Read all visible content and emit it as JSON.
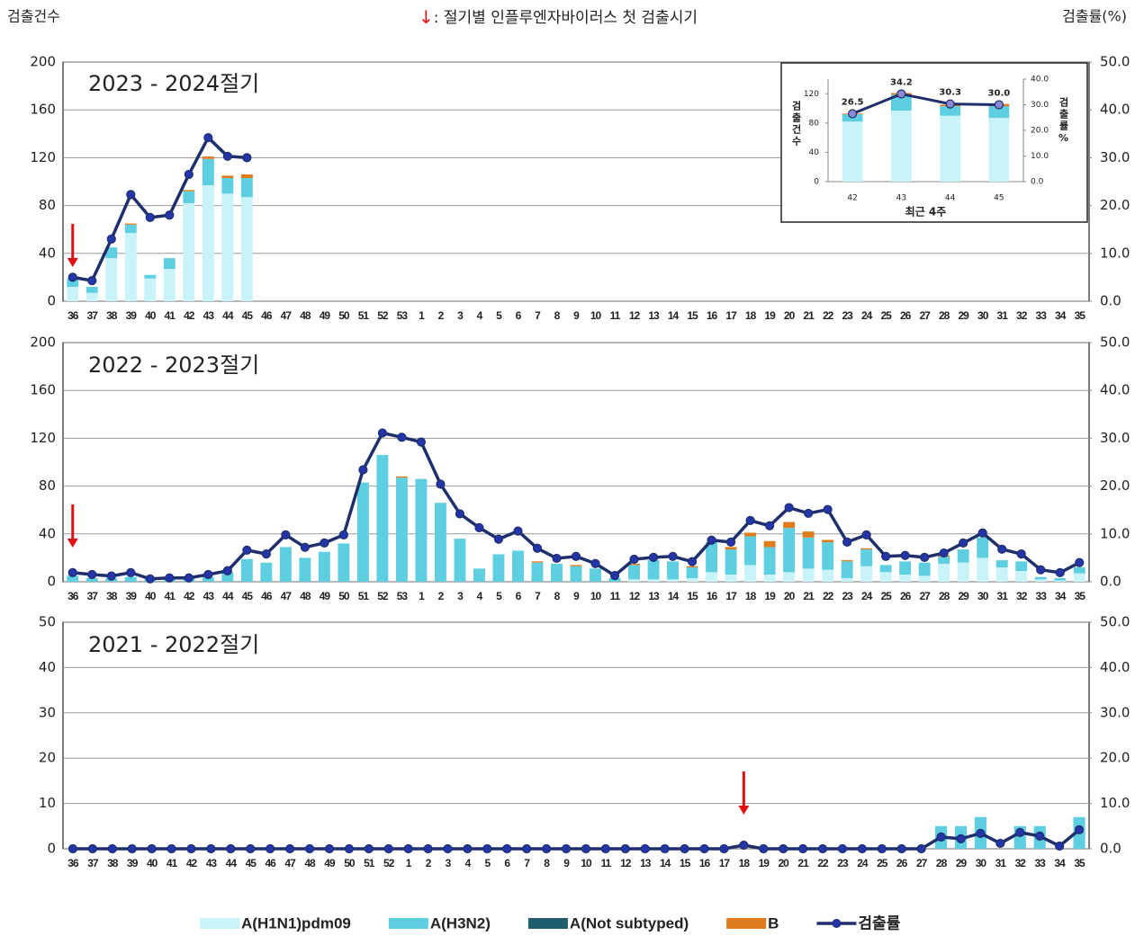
{
  "header": {
    "left_label": "검출건수",
    "note_mark": "↓",
    "note": ": 절기별 인플루엔자바이러스 첫 검출시기",
    "right_label": "검출률(%)"
  },
  "chart_data": [
    {
      "type": "stacked-bar-line",
      "title": "2023 - 2024절기",
      "legend": "bottom",
      "grid": true,
      "first_detection": "36",
      "categories": [
        "36",
        "37",
        "38",
        "39",
        "40",
        "41",
        "42",
        "43",
        "44",
        "45",
        "46",
        "47",
        "48",
        "49",
        "50",
        "51",
        "52",
        "53",
        "1",
        "2",
        "3",
        "4",
        "5",
        "6",
        "7",
        "8",
        "9",
        "10",
        "11",
        "12",
        "13",
        "14",
        "15",
        "16",
        "17",
        "18",
        "19",
        "20",
        "21",
        "22",
        "23",
        "24",
        "25",
        "26",
        "27",
        "28",
        "29",
        "30",
        "31",
        "32",
        "33",
        "34",
        "35"
      ],
      "ylim": [
        0,
        200
      ],
      "yticks": [
        0,
        40,
        80,
        120,
        160,
        200
      ],
      "y2lim": [
        0,
        50
      ],
      "y2ticks": [
        {
          "value": 0,
          "label": "0.0"
        },
        {
          "value": 10,
          "label": "10.0"
        },
        {
          "value": 20,
          "label": "20.0"
        },
        {
          "value": 30,
          "label": "30.0"
        },
        {
          "value": 40,
          "label": "40.0"
        },
        {
          "value": 50,
          "label": "50.0"
        }
      ],
      "series": [
        {
          "name": "A(H1N1)pdm09",
          "color": "#c8f3f9",
          "values": [
            12,
            7,
            36,
            57,
            19,
            27,
            82,
            97,
            90,
            87,
            null,
            null,
            null,
            null,
            null,
            null,
            null,
            null,
            null,
            null,
            null,
            null,
            null,
            null,
            null,
            null,
            null,
            null,
            null,
            null,
            null,
            null,
            null,
            null,
            null,
            null,
            null,
            null,
            null,
            null,
            null,
            null,
            null,
            null,
            null,
            null,
            null,
            null,
            null,
            null,
            null,
            null,
            null
          ]
        },
        {
          "name": "A(H3N2)",
          "color": "#5dcfe0",
          "values": [
            7,
            5,
            9,
            7,
            3,
            9,
            10,
            22,
            13,
            16,
            null,
            null,
            null,
            null,
            null,
            null,
            null,
            null,
            null,
            null,
            null,
            null,
            null,
            null,
            null,
            null,
            null,
            null,
            null,
            null,
            null,
            null,
            null,
            null,
            null,
            null,
            null,
            null,
            null,
            null,
            null,
            null,
            null,
            null,
            null,
            null,
            null,
            null,
            null,
            null,
            null,
            null,
            null
          ]
        },
        {
          "name": "A(Not subtyped)",
          "color": "#1f5d6c",
          "values": [
            0,
            0,
            0,
            0,
            0,
            0,
            0,
            0,
            0,
            0,
            null,
            null,
            null,
            null,
            null,
            null,
            null,
            null,
            null,
            null,
            null,
            null,
            null,
            null,
            null,
            null,
            null,
            null,
            null,
            null,
            null,
            null,
            null,
            null,
            null,
            null,
            null,
            null,
            null,
            null,
            null,
            null,
            null,
            null,
            null,
            null,
            null,
            null,
            null,
            null,
            null,
            null,
            null
          ]
        },
        {
          "name": "B",
          "color": "#e07b1c",
          "values": [
            0,
            0,
            0,
            1,
            0,
            0,
            1,
            2,
            2,
            3,
            null,
            null,
            null,
            null,
            null,
            null,
            null,
            null,
            null,
            null,
            null,
            null,
            null,
            null,
            null,
            null,
            null,
            null,
            null,
            null,
            null,
            null,
            null,
            null,
            null,
            null,
            null,
            null,
            null,
            null,
            null,
            null,
            null,
            null,
            null,
            null,
            null,
            null,
            null,
            null,
            null,
            null,
            null
          ]
        },
        {
          "name": "검출률",
          "color": "#1f2f6b",
          "marker_color": "#2335a8",
          "axis": "y2",
          "values": [
            5,
            4.3,
            13,
            22.3,
            17.5,
            18,
            26.5,
            34.2,
            30.3,
            30,
            null,
            null,
            null,
            null,
            null,
            null,
            null,
            null,
            null,
            null,
            null,
            null,
            null,
            null,
            null,
            null,
            null,
            null,
            null,
            null,
            null,
            null,
            null,
            null,
            null,
            null,
            null,
            null,
            null,
            null,
            null,
            null,
            null,
            null,
            null,
            null,
            null,
            null,
            null,
            null,
            null,
            null,
            null
          ]
        }
      ]
    },
    {
      "type": "stacked-bar-line",
      "title": "2022 - 2023절기",
      "grid": true,
      "first_detection": "36",
      "categories": [
        "36",
        "37",
        "38",
        "39",
        "40",
        "41",
        "42",
        "43",
        "44",
        "45",
        "46",
        "47",
        "48",
        "49",
        "50",
        "51",
        "52",
        "53",
        "1",
        "2",
        "3",
        "4",
        "5",
        "6",
        "7",
        "8",
        "9",
        "10",
        "11",
        "12",
        "13",
        "14",
        "15",
        "16",
        "17",
        "18",
        "19",
        "20",
        "21",
        "22",
        "23",
        "24",
        "25",
        "26",
        "27",
        "28",
        "29",
        "30",
        "31",
        "32",
        "33",
        "34",
        "35"
      ],
      "ylim": [
        0,
        200
      ],
      "yticks": [
        0,
        40,
        80,
        120,
        160,
        200
      ],
      "y2lim": [
        0,
        50
      ],
      "y2ticks": [
        {
          "value": 0,
          "label": "0.0"
        },
        {
          "value": 10,
          "label": "10.0"
        },
        {
          "value": 20,
          "label": "20.0"
        },
        {
          "value": 30,
          "label": "30.0"
        },
        {
          "value": 40,
          "label": "40.0"
        },
        {
          "value": 50,
          "label": "50.0"
        }
      ],
      "series": [
        {
          "name": "A(H1N1)pdm09",
          "color": "#c8f3f9",
          "values": [
            0,
            0,
            0,
            0,
            0,
            0,
            0,
            0,
            0,
            0,
            0,
            0,
            0,
            0,
            0,
            0,
            0,
            0,
            0,
            0,
            0,
            0,
            0,
            0,
            0,
            0,
            0,
            0,
            0,
            2,
            2,
            2,
            3,
            8,
            6,
            14,
            6,
            8,
            11,
            10,
            3,
            13,
            8,
            6,
            5,
            15,
            16,
            20,
            12,
            9,
            2,
            1,
            7
          ]
        },
        {
          "name": "A(H3N2)",
          "color": "#5dcfe0",
          "values": [
            5,
            3,
            3,
            4,
            2,
            2,
            3,
            4,
            8,
            19,
            16,
            29,
            20,
            25,
            32,
            83,
            106,
            87,
            86,
            66,
            36,
            11,
            23,
            26,
            16,
            15,
            13,
            11,
            3,
            12,
            16,
            15,
            9,
            25,
            21,
            24,
            23,
            37,
            26,
            23,
            14,
            14,
            6,
            11,
            11,
            6,
            11,
            17,
            6,
            8,
            2,
            2,
            5
          ]
        },
        {
          "name": "B",
          "color": "#e07b1c",
          "values": [
            0,
            0,
            0,
            0,
            0,
            0,
            0,
            0,
            0,
            0,
            0,
            0,
            0,
            0,
            0,
            0,
            0,
            1,
            0,
            0,
            0,
            0,
            0,
            0,
            1,
            0,
            1,
            0,
            0,
            1,
            0,
            0,
            1,
            0,
            2,
            3,
            5,
            5,
            5,
            2,
            1,
            1,
            0,
            0,
            0,
            1,
            0,
            0,
            0,
            0,
            0,
            0,
            0
          ]
        },
        {
          "name": "검출률",
          "color": "#1f2f6b",
          "marker_color": "#2335a8",
          "axis": "y2",
          "values": [
            1.9,
            1.5,
            1.2,
            1.9,
            0.6,
            0.8,
            0.8,
            1.5,
            2.3,
            6.6,
            5.8,
            9.8,
            7.2,
            8.1,
            9.8,
            23.4,
            31.1,
            30.2,
            29.2,
            20.4,
            14.2,
            11.3,
            8.9,
            10.6,
            7,
            4.9,
            5.3,
            3.8,
            1.3,
            4.7,
            5.1,
            5.3,
            4.2,
            8.7,
            8.3,
            12.8,
            11.7,
            15.5,
            14.3,
            15.1,
            8.3,
            9.8,
            5.3,
            5.5,
            5.1,
            6,
            8.1,
            10.2,
            6.8,
            5.8,
            2.5,
            1.9,
            4
          ]
        }
      ]
    },
    {
      "type": "stacked-bar-line",
      "title": "2021 - 2022절기",
      "grid": true,
      "first_detection": "18",
      "categories": [
        "36",
        "37",
        "38",
        "39",
        "40",
        "41",
        "42",
        "43",
        "44",
        "45",
        "46",
        "47",
        "48",
        "49",
        "50",
        "51",
        "52",
        "1",
        "2",
        "3",
        "4",
        "5",
        "6",
        "7",
        "8",
        "9",
        "10",
        "11",
        "12",
        "13",
        "14",
        "15",
        "16",
        "17",
        "18",
        "19",
        "20",
        "21",
        "22",
        "23",
        "24",
        "25",
        "26",
        "27",
        "28",
        "29",
        "30",
        "31",
        "32",
        "33",
        "34",
        "35"
      ],
      "ylim": [
        0,
        50
      ],
      "yticks": [
        0,
        10,
        20,
        30,
        40,
        50
      ],
      "y2lim": [
        0,
        50
      ],
      "y2ticks": [
        {
          "value": 0,
          "label": "0.0"
        },
        {
          "value": 10,
          "label": "10.0"
        },
        {
          "value": 20,
          "label": "20.0"
        },
        {
          "value": 30,
          "label": "30.0"
        },
        {
          "value": 40,
          "label": "40.0"
        },
        {
          "value": 50,
          "label": "50.0"
        }
      ],
      "series": [
        {
          "name": "A(H3N2)",
          "color": "#5dcfe0",
          "values": [
            0,
            0,
            0,
            0,
            0,
            0,
            0,
            0,
            0,
            0,
            0,
            0,
            0,
            0,
            0,
            0,
            0,
            0,
            0,
            0,
            0,
            0,
            0,
            0,
            0,
            0,
            0,
            0,
            0,
            0,
            0,
            0,
            0,
            0,
            0,
            0,
            0,
            0,
            0,
            0,
            0,
            0,
            0,
            0,
            5,
            5,
            7,
            0,
            5,
            5,
            0,
            7
          ]
        },
        {
          "name": "검출률",
          "color": "#1f2f6b",
          "marker_color": "#2335a8",
          "axis": "y2",
          "values": [
            0,
            0,
            0,
            0,
            0,
            0,
            0,
            0,
            0,
            0,
            0,
            0,
            0,
            0,
            0,
            0,
            0,
            0,
            0,
            0,
            0,
            0,
            0,
            0,
            0,
            0,
            0,
            0,
            0,
            0,
            0,
            0,
            0,
            0,
            0.8,
            0,
            0,
            0,
            0,
            0,
            0,
            0,
            0,
            0,
            2.6,
            2.2,
            3.4,
            1.2,
            3.6,
            2.8,
            0.6,
            4.2
          ]
        }
      ]
    },
    {
      "type": "stacked-bar-line",
      "grid": false,
      "xlabel": "최근 4주",
      "ylabel": "검출건수",
      "y2label": "검출률%",
      "categories": [
        "42",
        "43",
        "44",
        "45"
      ],
      "ylim": [
        0,
        140
      ],
      "yticks": [
        0,
        40,
        80,
        120
      ],
      "y2lim": [
        0,
        40
      ],
      "y2ticks": [
        {
          "value": 0,
          "label": "0.0"
        },
        {
          "value": 10,
          "label": "10.0"
        },
        {
          "value": 20,
          "label": "20.0"
        },
        {
          "value": 30,
          "label": "30.0"
        },
        {
          "value": 40,
          "label": "40.0"
        }
      ],
      "series": [
        {
          "name": "A(H1N1)pdm09",
          "color": "#c8f3f9",
          "values": [
            82,
            97,
            90,
            87
          ]
        },
        {
          "name": "A(H3N2)",
          "color": "#5dcfe0",
          "values": [
            10,
            22,
            13,
            16
          ]
        },
        {
          "name": "B",
          "color": "#e07b1c",
          "values": [
            1,
            2,
            2,
            3
          ]
        },
        {
          "name": "검출률",
          "color": "#1f2f6b",
          "marker_color": "#8c8ad6",
          "axis": "y2",
          "values": [
            26.5,
            34.2,
            30.3,
            30
          ],
          "value_labels": [
            "26.5",
            "34.2",
            "30.3",
            "30.0"
          ]
        }
      ]
    }
  ]
}
